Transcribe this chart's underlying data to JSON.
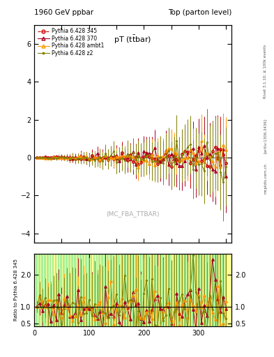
{
  "title_left": "1960 GeV ppbar",
  "title_right": "Top (parton level)",
  "plot_title": "pT (ttbar)",
  "watermark": "(MC_FBA_TTBAR)",
  "right_label1": "Rivet 3.1.10;",
  "right_label2": "≥ 100k events",
  "arxiv_label": "[arXiv:1306.3436]",
  "mcplots_label": "mcplots.cern.ch",
  "ylabel_ratio": "Ratio to Pythia 6.428 345",
  "xlim": [
    0,
    360
  ],
  "ylim_main": [
    -4.5,
    7.0
  ],
  "ylim_ratio": [
    0.4,
    2.65
  ],
  "main_yticks": [
    -4,
    -2,
    0,
    2,
    4,
    6
  ],
  "ratio_yticks": [
    0.5,
    1.0,
    2.0
  ],
  "xticks": [
    0,
    100,
    200,
    300
  ],
  "colors": {
    "345": "#cc0000",
    "370": "#aa0022",
    "ambt1": "#ff9900",
    "z2": "#808000"
  },
  "background_color": "#ffffff",
  "ratio_band_yellow": "#ffff99",
  "ratio_band_green": "#99ee99"
}
